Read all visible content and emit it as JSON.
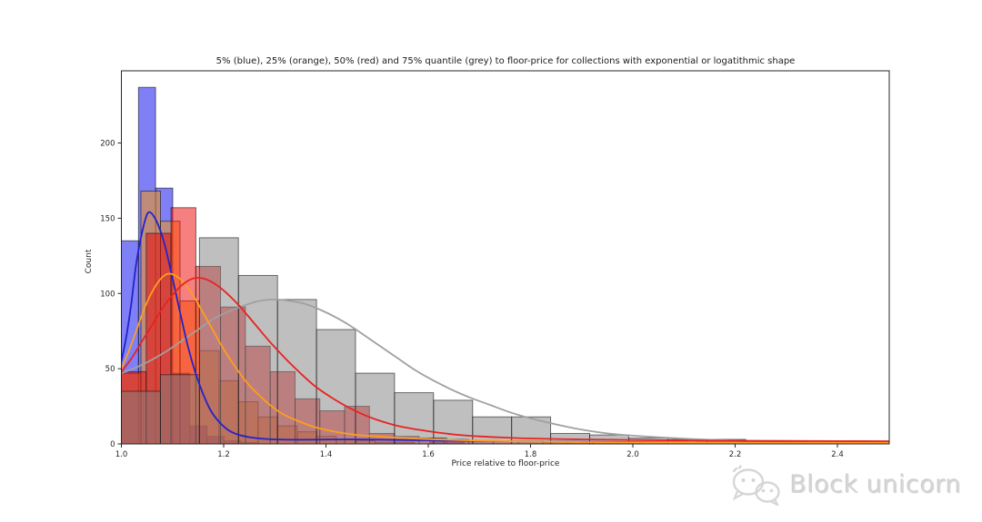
{
  "watermark": {
    "text": "Block unicorn",
    "icon": "wechat-bubbles-icon",
    "color": "#d6d6d6"
  },
  "chart_data": {
    "type": "histogram",
    "title": "5% (blue), 25% (orange), 50% (red) and 75% quantile (grey) to floor-price for collections with exponential or logatithmic shape",
    "xlabel": "Price relative to floor-price",
    "ylabel": "Count",
    "xlim": [
      1.0,
      2.5
    ],
    "ylim": [
      0,
      248
    ],
    "xticks": [
      1.0,
      1.2,
      1.4,
      1.6,
      1.8,
      2.0,
      2.2,
      2.4
    ],
    "yticks": [
      0,
      50,
      100,
      150,
      200
    ],
    "grid": false,
    "legend": "none - series colors are described in the title",
    "bars_draw_order": [
      "blue",
      "orange",
      "red",
      "grey"
    ],
    "curves_draw_order": [
      "grey",
      "blue",
      "orange",
      "red"
    ],
    "series": [
      {
        "id": "blue",
        "name": "5% quantile",
        "bar_color": "#0000ee",
        "line_color": "#2222cc",
        "fill_opacity": 0.5,
        "bin_start": 1.0,
        "bin_width": 0.0335,
        "heights": [
          135,
          237,
          170,
          47,
          12,
          5,
          2,
          1,
          0,
          0,
          0,
          0,
          0,
          0,
          0,
          0,
          0,
          0,
          4,
          3
        ],
        "kde": [
          [
            1.0,
            55
          ],
          [
            1.01,
            72
          ],
          [
            1.02,
            95
          ],
          [
            1.03,
            122
          ],
          [
            1.045,
            147
          ],
          [
            1.055,
            154
          ],
          [
            1.07,
            147
          ],
          [
            1.085,
            132
          ],
          [
            1.1,
            110
          ],
          [
            1.115,
            87
          ],
          [
            1.13,
            65
          ],
          [
            1.145,
            47
          ],
          [
            1.16,
            33
          ],
          [
            1.175,
            22
          ],
          [
            1.19,
            15
          ],
          [
            1.21,
            9
          ],
          [
            1.23,
            6
          ],
          [
            1.26,
            4
          ],
          [
            1.3,
            3
          ],
          [
            1.36,
            2.8
          ],
          [
            1.45,
            3
          ],
          [
            1.55,
            2.6
          ],
          [
            1.7,
            2
          ],
          [
            1.9,
            1.4
          ],
          [
            2.1,
            1
          ],
          [
            2.3,
            0.8
          ],
          [
            2.5,
            0.7
          ]
        ]
      },
      {
        "id": "orange",
        "name": "25% quantile",
        "bar_color": "#ff9800",
        "line_color": "#ff9d1e",
        "fill_opacity": 0.5,
        "bin_start": 1.0,
        "bin_width": 0.0382,
        "heights": [
          47,
          168,
          148,
          95,
          62,
          42,
          28,
          18,
          12,
          8,
          5,
          3,
          2,
          1,
          1
        ],
        "kde": [
          [
            1.0,
            50
          ],
          [
            1.015,
            62
          ],
          [
            1.03,
            76
          ],
          [
            1.045,
            90
          ],
          [
            1.06,
            101
          ],
          [
            1.075,
            109
          ],
          [
            1.09,
            113
          ],
          [
            1.105,
            112
          ],
          [
            1.12,
            108
          ],
          [
            1.14,
            99
          ],
          [
            1.16,
            87
          ],
          [
            1.18,
            75
          ],
          [
            1.2,
            63
          ],
          [
            1.225,
            50
          ],
          [
            1.25,
            39
          ],
          [
            1.28,
            29
          ],
          [
            1.31,
            21
          ],
          [
            1.34,
            16
          ],
          [
            1.38,
            11
          ],
          [
            1.42,
            8
          ],
          [
            1.46,
            6
          ],
          [
            1.5,
            5
          ],
          [
            1.55,
            4
          ],
          [
            1.6,
            3.2
          ],
          [
            1.7,
            2.2
          ],
          [
            1.8,
            1.6
          ],
          [
            1.9,
            1.2
          ],
          [
            2.0,
            1
          ],
          [
            2.2,
            0.8
          ],
          [
            2.4,
            0.7
          ],
          [
            2.5,
            0.7
          ]
        ]
      },
      {
        "id": "red",
        "name": "50% quantile",
        "bar_color": "#ee0000",
        "line_color": "#e82222",
        "fill_opacity": 0.5,
        "bin_start": 1.0,
        "bin_width": 0.0485,
        "heights": [
          48,
          140,
          157,
          118,
          91,
          65,
          48,
          30,
          22,
          25,
          7,
          5,
          4,
          3,
          2,
          2,
          2,
          1,
          1,
          1,
          1
        ],
        "kde": [
          [
            1.0,
            48
          ],
          [
            1.02,
            57
          ],
          [
            1.04,
            68
          ],
          [
            1.06,
            79
          ],
          [
            1.08,
            90
          ],
          [
            1.1,
            99
          ],
          [
            1.12,
            106
          ],
          [
            1.14,
            110
          ],
          [
            1.16,
            110
          ],
          [
            1.18,
            107
          ],
          [
            1.2,
            102
          ],
          [
            1.23,
            92
          ],
          [
            1.26,
            80
          ],
          [
            1.29,
            68
          ],
          [
            1.32,
            57
          ],
          [
            1.35,
            47
          ],
          [
            1.38,
            38
          ],
          [
            1.41,
            31
          ],
          [
            1.44,
            25
          ],
          [
            1.47,
            20
          ],
          [
            1.5,
            16
          ],
          [
            1.54,
            12
          ],
          [
            1.58,
            9.5
          ],
          [
            1.62,
            7.5
          ],
          [
            1.66,
            6
          ],
          [
            1.7,
            5
          ],
          [
            1.75,
            4.2
          ],
          [
            1.8,
            3.6
          ],
          [
            1.9,
            3
          ],
          [
            2.0,
            2.6
          ],
          [
            2.1,
            2.3
          ],
          [
            2.2,
            2.1
          ],
          [
            2.3,
            2
          ],
          [
            2.4,
            1.9
          ],
          [
            2.5,
            1.8
          ]
        ]
      },
      {
        "id": "grey",
        "name": "75% quantile",
        "bar_color": "#7f7f7f",
        "line_color": "#a0a0a0",
        "fill_opacity": 0.5,
        "bin_start": 1.0,
        "bin_width": 0.0763,
        "heights": [
          35,
          46,
          137,
          112,
          96,
          76,
          47,
          34,
          29,
          18,
          18,
          7,
          6,
          4,
          3,
          3,
          2,
          2,
          1,
          1
        ],
        "kde": [
          [
            1.0,
            47
          ],
          [
            1.03,
            51
          ],
          [
            1.06,
            56
          ],
          [
            1.09,
            62
          ],
          [
            1.12,
            69
          ],
          [
            1.15,
            76
          ],
          [
            1.18,
            83
          ],
          [
            1.21,
            88
          ],
          [
            1.24,
            92
          ],
          [
            1.27,
            95
          ],
          [
            1.3,
            96
          ],
          [
            1.33,
            95
          ],
          [
            1.36,
            93
          ],
          [
            1.39,
            89
          ],
          [
            1.42,
            84
          ],
          [
            1.45,
            78
          ],
          [
            1.48,
            71
          ],
          [
            1.51,
            64
          ],
          [
            1.54,
            57
          ],
          [
            1.57,
            50
          ],
          [
            1.6,
            44
          ],
          [
            1.64,
            37
          ],
          [
            1.68,
            31
          ],
          [
            1.72,
            26
          ],
          [
            1.76,
            21
          ],
          [
            1.8,
            17
          ],
          [
            1.85,
            13
          ],
          [
            1.9,
            9.5
          ],
          [
            1.95,
            7
          ],
          [
            2.0,
            5.5
          ],
          [
            2.1,
            3.5
          ],
          [
            2.2,
            2.3
          ],
          [
            2.3,
            1.5
          ],
          [
            2.4,
            1
          ],
          [
            2.5,
            0.8
          ]
        ]
      }
    ]
  }
}
